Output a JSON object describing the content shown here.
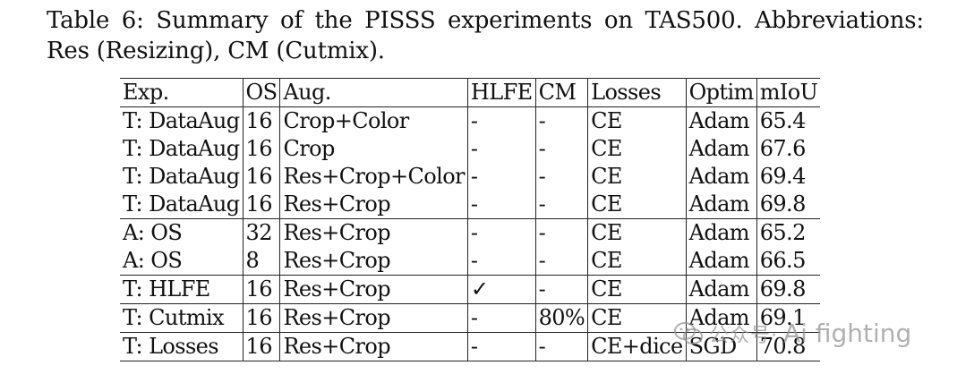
{
  "caption": {
    "text": "Table 6: Summary of the PISSS experiments on TAS500. Abbreviations: Res (Resizing), CM (Cutmix)."
  },
  "table": {
    "headers": [
      "Exp.",
      "OS",
      "Aug.",
      "HLFE",
      "CM",
      "Losses",
      "Optim",
      "mIoU"
    ],
    "rows": [
      {
        "exp": "T: DataAug",
        "os": "16",
        "aug": "Crop+Color",
        "hlfe": "-",
        "cm": "-",
        "losses": "CE",
        "optim": "Adam",
        "miou": "65.4",
        "bold_miou": false
      },
      {
        "exp": "T: DataAug",
        "os": "16",
        "aug": "Crop",
        "hlfe": "-",
        "cm": "-",
        "losses": "CE",
        "optim": "Adam",
        "miou": "67.6",
        "bold_miou": false
      },
      {
        "exp": "T: DataAug",
        "os": "16",
        "aug": "Res+Crop+Color",
        "hlfe": "-",
        "cm": "-",
        "losses": "CE",
        "optim": "Adam",
        "miou": "69.4",
        "bold_miou": false
      },
      {
        "exp": "T: DataAug",
        "os": "16",
        "aug": "Res+Crop",
        "hlfe": "-",
        "cm": "-",
        "losses": "CE",
        "optim": "Adam",
        "miou": "69.8",
        "bold_miou": true
      },
      {
        "exp": "A: OS",
        "os": "32",
        "aug": "Res+Crop",
        "hlfe": "-",
        "cm": "-",
        "losses": "CE",
        "optim": "Adam",
        "miou": "65.2",
        "bold_miou": false
      },
      {
        "exp": "A: OS",
        "os": "8",
        "aug": "Res+Crop",
        "hlfe": "-",
        "cm": "-",
        "losses": "CE",
        "optim": "Adam",
        "miou": "66.5",
        "bold_miou": false
      },
      {
        "exp": "T: HLFE",
        "os": "16",
        "aug": "Res+Crop",
        "hlfe": "✓",
        "cm": "-",
        "losses": "CE",
        "optim": "Adam",
        "miou": "69.8",
        "bold_miou": false
      },
      {
        "exp": "T: Cutmix",
        "os": "16",
        "aug": "Res+Crop",
        "hlfe": "-",
        "cm": "80%",
        "losses": "CE",
        "optim": "Adam",
        "miou": "69.1",
        "bold_miou": false
      },
      {
        "exp": "T: Losses",
        "os": "16",
        "aug": "Res+Crop",
        "hlfe": "-",
        "cm": "-",
        "losses": "CE+dice",
        "optim": "SGD",
        "miou": "70.8",
        "bold_miou": true
      }
    ],
    "group_starts": [
      4,
      6,
      7,
      8
    ]
  },
  "watermark": {
    "text": "Ai fighting",
    "prefix": "公众号·"
  }
}
